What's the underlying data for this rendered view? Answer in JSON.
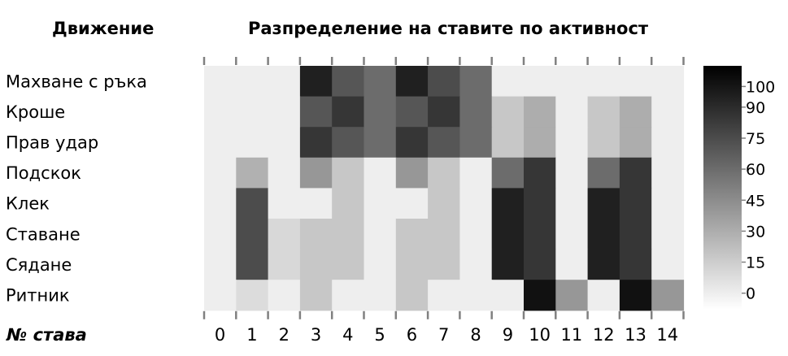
{
  "chart_data": {
    "type": "heatmap",
    "column_header": "Движение",
    "title": "Разпределение на ставите по активност",
    "xlabel": "№ става",
    "rows": [
      "Махване с ръка",
      "Кроше",
      "Прав удар",
      "Подскок",
      "Клек",
      "Ставане",
      "Сядане",
      "Ритник"
    ],
    "columns": [
      "0",
      "1",
      "2",
      "3",
      "4",
      "5",
      "6",
      "7",
      "8",
      "9",
      "10",
      "11",
      "12",
      "13",
      "14"
    ],
    "values": [
      [
        0,
        0,
        0,
        95,
        70,
        60,
        95,
        75,
        60,
        0,
        0,
        0,
        0,
        0,
        0
      ],
      [
        0,
        0,
        0,
        70,
        85,
        60,
        70,
        85,
        60,
        18,
        30,
        0,
        18,
        30,
        0
      ],
      [
        0,
        0,
        0,
        85,
        70,
        60,
        85,
        70,
        60,
        18,
        30,
        0,
        18,
        30,
        0
      ],
      [
        0,
        28,
        0,
        40,
        18,
        0,
        40,
        18,
        0,
        60,
        85,
        0,
        60,
        85,
        0
      ],
      [
        0,
        75,
        0,
        0,
        18,
        0,
        0,
        18,
        0,
        95,
        85,
        0,
        95,
        85,
        0
      ],
      [
        0,
        75,
        10,
        18,
        18,
        0,
        18,
        18,
        0,
        95,
        85,
        0,
        95,
        85,
        0
      ],
      [
        0,
        75,
        10,
        18,
        18,
        0,
        18,
        18,
        0,
        95,
        85,
        0,
        95,
        85,
        0
      ],
      [
        0,
        8,
        0,
        18,
        0,
        0,
        18,
        0,
        0,
        0,
        102,
        40,
        0,
        102,
        40
      ]
    ],
    "colorbar": {
      "range": [
        -8,
        110
      ],
      "ticks": [
        100,
        90,
        75,
        60,
        45,
        30,
        15,
        0
      ],
      "colors": {
        "low": "#ffffff",
        "high": "#000000"
      }
    }
  }
}
